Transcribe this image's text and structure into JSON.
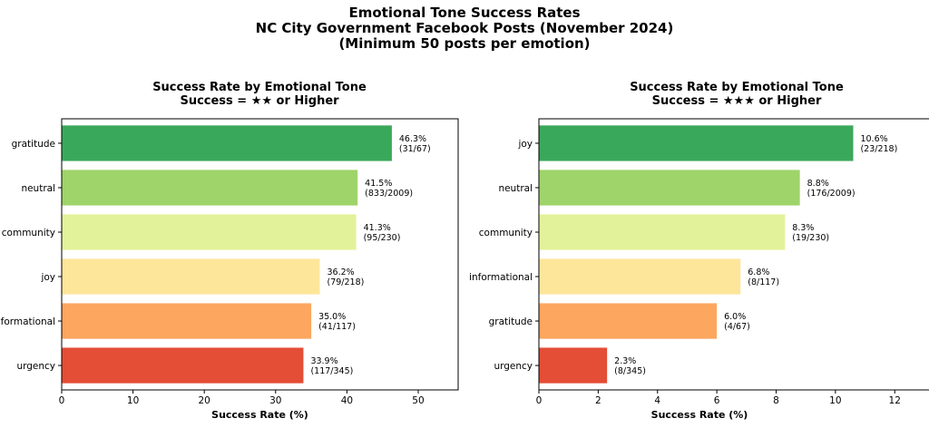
{
  "figure": {
    "title_lines": [
      "Emotional Tone Success Rates",
      "NC City Government Facebook Posts (November 2024)",
      "(Minimum 50 posts per emotion)"
    ]
  },
  "chart_data": [
    {
      "type": "bar",
      "orientation": "horizontal",
      "title_lines": [
        "Success Rate by Emotional Tone",
        "Success = ★★ or Higher"
      ],
      "xlabel": "Success Rate (%)",
      "ylabel": "",
      "xlim": [
        0,
        55.6
      ],
      "xticks": [
        0,
        10,
        20,
        30,
        40,
        50
      ],
      "grid": false,
      "categories": [
        "gratitude",
        "neutral",
        "community",
        "joy",
        "informational",
        "urgency"
      ],
      "values": [
        46.3,
        41.5,
        41.3,
        36.2,
        35.0,
        33.9
      ],
      "value_labels": [
        "46.3%",
        "41.5%",
        "41.3%",
        "36.2%",
        "35.0%",
        "33.9%"
      ],
      "count_labels": [
        "(31/67)",
        "(833/2009)",
        "(95/230)",
        "(79/218)",
        "(41/117)",
        "(117/345)"
      ],
      "colors": [
        "#3aa85a",
        "#9ed46a",
        "#e2f29a",
        "#fde69a",
        "#fca65f",
        "#e44d36"
      ]
    },
    {
      "type": "bar",
      "orientation": "horizontal",
      "title_lines": [
        "Success Rate by Emotional Tone",
        "Success = ★★★ or Higher"
      ],
      "xlabel": "Success Rate (%)",
      "ylabel": "",
      "xlim": [
        0,
        13.4
      ],
      "xticks": [
        0,
        2,
        4,
        6,
        8,
        10,
        12
      ],
      "grid": false,
      "categories": [
        "joy",
        "neutral",
        "community",
        "informational",
        "gratitude",
        "urgency"
      ],
      "values": [
        10.6,
        8.8,
        8.3,
        6.8,
        6.0,
        2.3
      ],
      "value_labels": [
        "10.6%",
        "8.8%",
        "8.3%",
        "6.8%",
        "6.0%",
        "2.3%"
      ],
      "count_labels": [
        "(23/218)",
        "(176/2009)",
        "(19/230)",
        "(8/117)",
        "(4/67)",
        "(8/345)"
      ],
      "colors": [
        "#3aa85a",
        "#9ed46a",
        "#e2f29a",
        "#fde69a",
        "#fca65f",
        "#e44d36"
      ]
    }
  ]
}
